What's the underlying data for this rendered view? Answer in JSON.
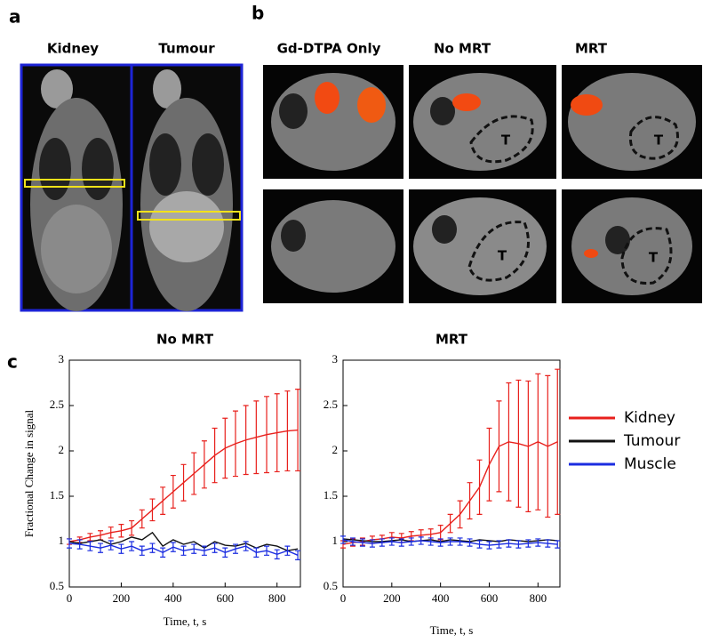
{
  "panel_labels": [
    "a",
    "b",
    "c"
  ],
  "panel_a": {
    "titles": [
      "Kidney",
      "Tumour"
    ]
  },
  "panel_b": {
    "titles": [
      "Gd-DTPA Only",
      "No MRT",
      "MRT"
    ],
    "tumour_marker": "T"
  },
  "chart_data": [
    {
      "type": "line",
      "title": "No MRT",
      "x_label": "Time, t, s",
      "y_label": "Fractional Change in signal",
      "x": [
        0,
        40,
        80,
        120,
        160,
        200,
        240,
        280,
        320,
        360,
        400,
        440,
        480,
        520,
        560,
        600,
        640,
        680,
        720,
        760,
        800,
        840,
        880
      ],
      "xlim": [
        0,
        890
      ],
      "xticks": [
        0,
        200,
        400,
        600,
        800
      ],
      "ylim": [
        0.5,
        3
      ],
      "yticks": [
        0.5,
        1,
        1.5,
        2,
        2.5,
        3
      ],
      "series": [
        {
          "name": "Kidney",
          "color": "#e8201c",
          "values": [
            1.0,
            1.02,
            1.05,
            1.07,
            1.1,
            1.12,
            1.15,
            1.25,
            1.35,
            1.45,
            1.55,
            1.65,
            1.75,
            1.85,
            1.95,
            2.03,
            2.08,
            2.12,
            2.15,
            2.18,
            2.2,
            2.22,
            2.23
          ],
          "errors": [
            0.03,
            0.03,
            0.04,
            0.05,
            0.06,
            0.07,
            0.08,
            0.1,
            0.12,
            0.15,
            0.18,
            0.2,
            0.23,
            0.26,
            0.3,
            0.33,
            0.36,
            0.38,
            0.4,
            0.42,
            0.43,
            0.44,
            0.45
          ]
        },
        {
          "name": "Tumour",
          "color": "#111111",
          "values": [
            1.0,
            0.98,
            1.0,
            1.02,
            0.97,
            1.0,
            1.05,
            1.02,
            1.1,
            0.95,
            1.02,
            0.97,
            1.0,
            0.93,
            1.0,
            0.96,
            0.95,
            0.98,
            0.93,
            0.97,
            0.95,
            0.9,
            0.92
          ]
        },
        {
          "name": "Muscle",
          "color": "#1b2de0",
          "values": [
            0.98,
            0.97,
            0.95,
            0.93,
            0.96,
            0.92,
            0.95,
            0.9,
            0.93,
            0.88,
            0.94,
            0.9,
            0.92,
            0.9,
            0.93,
            0.88,
            0.92,
            0.95,
            0.88,
            0.9,
            0.86,
            0.9,
            0.85
          ],
          "errors": [
            0.05,
            0.05,
            0.05,
            0.05,
            0.05,
            0.05,
            0.05,
            0.05,
            0.05,
            0.05,
            0.05,
            0.05,
            0.05,
            0.05,
            0.05,
            0.05,
            0.05,
            0.05,
            0.05,
            0.05,
            0.05,
            0.05,
            0.05
          ]
        }
      ]
    },
    {
      "type": "line",
      "title": "MRT",
      "x_label": "Time, t, s",
      "x": [
        0,
        40,
        80,
        120,
        160,
        200,
        240,
        280,
        320,
        360,
        400,
        440,
        480,
        520,
        560,
        600,
        640,
        680,
        720,
        760,
        800,
        840,
        880
      ],
      "xlim": [
        0,
        890
      ],
      "xticks": [
        0,
        200,
        400,
        600,
        800
      ],
      "ylim": [
        0.5,
        3
      ],
      "yticks": [
        0.5,
        1,
        1.5,
        2,
        2.5,
        3
      ],
      "series": [
        {
          "name": "Kidney",
          "color": "#e8201c",
          "values": [
            0.97,
            0.99,
            1.0,
            1.02,
            1.03,
            1.05,
            1.04,
            1.06,
            1.07,
            1.08,
            1.1,
            1.2,
            1.3,
            1.45,
            1.6,
            1.85,
            2.05,
            2.1,
            2.08,
            2.05,
            2.1,
            2.05,
            2.1
          ],
          "errors": [
            0.04,
            0.04,
            0.04,
            0.04,
            0.04,
            0.05,
            0.05,
            0.05,
            0.06,
            0.06,
            0.08,
            0.1,
            0.15,
            0.2,
            0.3,
            0.4,
            0.5,
            0.65,
            0.7,
            0.72,
            0.75,
            0.78,
            0.8
          ]
        },
        {
          "name": "Tumour",
          "color": "#111111",
          "values": [
            1.03,
            1.02,
            1.01,
            1.0,
            1.0,
            1.01,
            1.02,
            1.0,
            1.01,
            1.02,
            1.0,
            1.02,
            1.01,
            1.0,
            1.02,
            1.01,
            1.0,
            1.02,
            1.01,
            1.0,
            1.01,
            1.02,
            1.01
          ]
        },
        {
          "name": "Muscle",
          "color": "#1b2de0",
          "values": [
            1.02,
            1.0,
            0.99,
            0.98,
            0.99,
            1.0,
            0.99,
            1.0,
            1.01,
            1.0,
            0.99,
            1.0,
            1.0,
            0.99,
            0.97,
            0.96,
            0.97,
            0.98,
            0.97,
            0.98,
            0.99,
            0.98,
            0.97
          ],
          "errors": [
            0.04,
            0.04,
            0.04,
            0.04,
            0.04,
            0.04,
            0.04,
            0.04,
            0.04,
            0.04,
            0.04,
            0.04,
            0.04,
            0.04,
            0.04,
            0.04,
            0.04,
            0.04,
            0.04,
            0.04,
            0.04,
            0.04,
            0.04
          ]
        }
      ]
    }
  ]
}
